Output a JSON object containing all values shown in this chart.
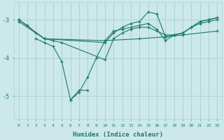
{
  "xlabel": "Humidex (Indice chaleur)",
  "bg_color": "#cce8e8",
  "grid_color": "#aad4d4",
  "line_color": "#1a7a6e",
  "xlim": [
    -0.5,
    23.5
  ],
  "ylim": [
    -5.6,
    -2.55
  ],
  "yticks": [
    -5,
    -4,
    -3
  ],
  "xticks": [
    0,
    1,
    2,
    3,
    4,
    5,
    6,
    7,
    8,
    9,
    10,
    11,
    12,
    13,
    14,
    15,
    16,
    17,
    18,
    19,
    20,
    21,
    22,
    23
  ],
  "series": [
    {
      "x": [
        0,
        3,
        10,
        14,
        17,
        19,
        23
      ],
      "y": [
        -3.05,
        -3.5,
        -3.55,
        -3.5,
        -3.45,
        -3.4,
        -3.3
      ]
    },
    {
      "x": [
        0,
        1,
        2,
        3,
        4,
        5,
        10,
        11,
        12,
        13,
        14,
        15,
        16,
        17,
        18,
        19,
        20,
        21,
        22,
        23
      ],
      "y": [
        -3.0,
        -3.15,
        -3.35,
        -3.5,
        -3.55,
        -3.6,
        -4.05,
        -3.5,
        -3.35,
        -3.25,
        -3.2,
        -3.2,
        -3.3,
        -3.4,
        -3.4,
        -3.35,
        -3.2,
        -3.1,
        -3.05,
        -3.0
      ]
    },
    {
      "x": [
        2,
        3,
        4,
        5,
        6,
        7,
        8,
        9,
        10,
        11,
        12,
        13,
        14,
        15,
        16,
        17,
        18,
        19,
        20,
        21,
        22,
        23
      ],
      "y": [
        -3.5,
        -3.6,
        -3.7,
        -4.1,
        -5.1,
        -4.9,
        -4.5,
        -4.0,
        -3.55,
        -3.3,
        -3.25,
        -3.2,
        -3.15,
        -3.1,
        -3.25,
        -3.55,
        -3.4,
        -3.35,
        -3.2,
        -3.05,
        -3.0,
        -2.95
      ]
    },
    {
      "x": [
        6,
        7,
        8
      ],
      "y": [
        -5.1,
        -4.85,
        -4.85
      ]
    },
    {
      "x": [
        0,
        3,
        10,
        11,
        12,
        13,
        14,
        15,
        16,
        17,
        19,
        21,
        22,
        23
      ],
      "y": [
        -3.0,
        -3.5,
        -3.6,
        -3.35,
        -3.2,
        -3.1,
        -3.05,
        -2.8,
        -2.85,
        -3.45,
        -3.35,
        -3.05,
        -3.0,
        -2.95
      ]
    }
  ]
}
